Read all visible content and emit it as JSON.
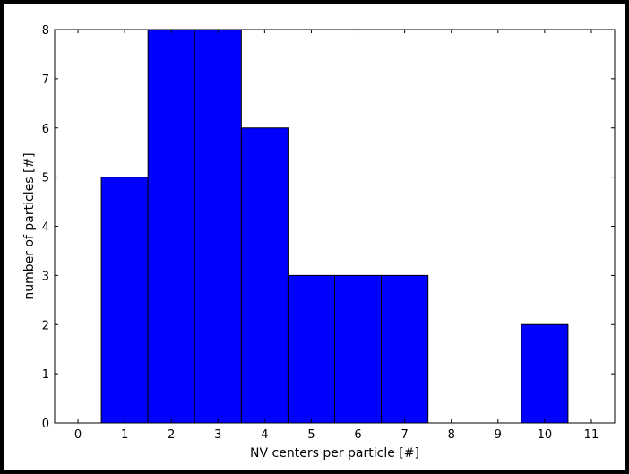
{
  "chart_data": {
    "type": "bar",
    "histogram": true,
    "bins": [
      {
        "x": 1,
        "value": 5
      },
      {
        "x": 2,
        "value": 8
      },
      {
        "x": 3,
        "value": 8
      },
      {
        "x": 4,
        "value": 6
      },
      {
        "x": 5,
        "value": 3
      },
      {
        "x": 6,
        "value": 3
      },
      {
        "x": 7,
        "value": 3
      },
      {
        "x": 10,
        "value": 2
      }
    ],
    "bar_width": 1,
    "xlim": [
      -0.5,
      11.5
    ],
    "ylim": [
      0,
      8
    ],
    "xticks": [
      "0",
      "1",
      "2",
      "3",
      "4",
      "5",
      "6",
      "7",
      "8",
      "9",
      "10",
      "11"
    ],
    "yticks": [
      "0",
      "1",
      "2",
      "3",
      "4",
      "5",
      "6",
      "7",
      "8"
    ],
    "xlabel": "NV centers per particle [#]",
    "ylabel": "number of particles [#]",
    "grid": false,
    "colors": {
      "bar": "#0000ff",
      "edge": "#000000",
      "background": "#ffffff"
    }
  }
}
